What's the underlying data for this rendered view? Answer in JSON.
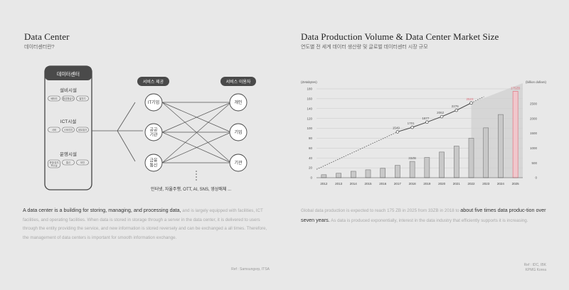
{
  "left": {
    "title": "Data Center",
    "subtitle": "데이터센터란?",
    "diagram": {
      "panel_title": "데이터센터",
      "sections": [
        {
          "title": "설비시설",
          "tags": [
            "배터리",
            "항온항습기",
            "발전기"
          ]
        },
        {
          "title": "ICT시설",
          "tags": [
            "서버",
            "스토리지",
            "네트워크"
          ]
        },
        {
          "title": "운영시설",
          "tags": [
            "운영/유지\n보수실",
            "통신",
            "보안"
          ]
        }
      ],
      "providers_header": "서비스 제공",
      "providers": [
        "IT기업",
        "공공\n기관",
        "금융\n통신"
      ],
      "users_header": "서비스 이용자",
      "users": [
        "개인",
        "기업",
        "기관"
      ],
      "services_caption": "인터넷, 자율주행, OTT, AI, SNS, 영상매체 ..."
    },
    "paragraph": {
      "highlight": "A data center is a building for storing, managing, and processing data,",
      "rest": " and is largely equipped with facilities, ICT facilities, and operating facilities. When data is stored in storage through a server in the data center, it is delivered to users through the entity providing the service, and new information is stored reversely and can be exchanged a all times. Therefore, the management of data centers is important for smooth information exchange."
    },
    "ref": "Ref : Samsungsrp, ITSA"
  },
  "right": {
    "title": "Data Production Volume & Data Center Market Size",
    "subtitle": "연도별 전 세계 데이터 생산량 및 글로벌 데이터센터 시장 규모",
    "paragraph": {
      "pre": "Global data production is expected to reach 175 ZB in 2025 from 33ZB in 2018 to ",
      "highlight": "about five times data produc-tion over seven years.",
      "post": " As data is produced exponentially, interest in the data industry that efficiently supports it is increasing."
    },
    "ref": "Ref : IDC, IBK\nKPMG Korea"
  },
  "chart_data": {
    "type": "bar",
    "categories": [
      "2012",
      "2013",
      "2014",
      "2015",
      "2016",
      "2017",
      "2018",
      "2019",
      "2020",
      "2021",
      "2022",
      "2023",
      "2024",
      "2025"
    ],
    "series": [
      {
        "name": "",
        "axis": "left",
        "type": "bar",
        "values": [
          6,
          9,
          13,
          16,
          19,
          25,
          33,
          41,
          52,
          64,
          80,
          101,
          128,
          175
        ],
        "label_index": 6,
        "label_text": "33ZB",
        "highlight_index": 13,
        "highlight_label": "175ZB",
        "highlight_color": "#e06a78"
      },
      {
        "name": "",
        "axis": "right",
        "type": "line",
        "x": [
          "2017",
          "2018",
          "2019",
          "2020",
          "2021",
          "2022"
        ],
        "values": [
          1549,
          1701,
          1877,
          2062,
          2276,
          2523
        ],
        "labels": [
          "1549",
          "1701",
          "1877",
          "2062",
          "2276",
          "2523"
        ],
        "highlight_label_color": "#e06a78"
      }
    ],
    "ylabel_left": "(Zetabytes)",
    "ylabel_right": "(billion dollars)",
    "ylim_left": [
      0,
      180
    ],
    "yticks_left": [
      0,
      20,
      40,
      60,
      80,
      100,
      120,
      140,
      160,
      180
    ],
    "ylim_right": [
      0,
      3000
    ],
    "yticks_right": [
      0,
      500,
      1000,
      1500,
      2000,
      2500
    ],
    "grid": true
  }
}
